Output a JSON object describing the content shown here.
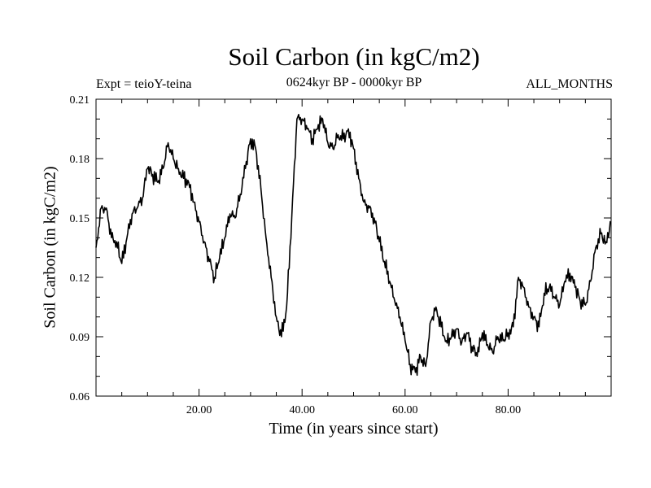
{
  "chart_data": {
    "type": "line",
    "title": "Soil Carbon (in kgC/m2)",
    "experiment": "Expt = teioY-teina",
    "period": "0624kyr BP - 0000kyr BP",
    "season": "ALL_MONTHS",
    "xlabel": "Time (in years since start)",
    "ylabel": "Soil Carbon (in kgC/m2)",
    "xlim": [
      0,
      100
    ],
    "ylim": [
      0.06,
      0.21
    ],
    "x_ticks": [
      20,
      40,
      60,
      80
    ],
    "x_tick_labels": [
      "20.00",
      "40.00",
      "60.00",
      "80.00"
    ],
    "y_ticks": [
      0.06,
      0.09,
      0.12,
      0.15,
      0.18,
      0.21
    ],
    "y_tick_labels": [
      "0.06",
      "0.09",
      "0.12",
      "0.15",
      "0.18",
      "0.21"
    ],
    "series": [
      {
        "name": "Soil Carbon",
        "x": [
          0,
          1,
          2,
          3,
          4,
          5,
          6,
          7,
          8,
          9,
          10,
          11,
          12,
          13,
          14,
          15,
          16,
          17,
          18,
          19,
          20,
          21,
          22,
          23,
          24,
          25,
          26,
          27,
          28,
          29,
          30,
          31,
          32,
          33,
          34,
          35,
          36,
          37,
          38,
          39,
          40,
          41,
          42,
          43,
          44,
          45,
          46,
          47,
          48,
          49,
          50,
          51,
          52,
          53,
          54,
          55,
          56,
          57,
          58,
          59,
          60,
          61,
          62,
          63,
          64,
          65,
          66,
          67,
          68,
          69,
          70,
          71,
          72,
          73,
          74,
          75,
          76,
          77,
          78,
          79,
          80,
          81,
          82,
          83,
          84,
          85,
          86,
          87,
          88,
          89,
          90,
          91,
          92,
          93,
          94,
          95,
          96,
          97,
          98,
          99,
          100
        ],
        "values": [
          0.135,
          0.155,
          0.155,
          0.14,
          0.138,
          0.127,
          0.14,
          0.152,
          0.155,
          0.16,
          0.175,
          0.172,
          0.168,
          0.175,
          0.188,
          0.18,
          0.175,
          0.17,
          0.168,
          0.158,
          0.148,
          0.138,
          0.128,
          0.12,
          0.13,
          0.14,
          0.152,
          0.15,
          0.162,
          0.175,
          0.19,
          0.185,
          0.165,
          0.14,
          0.12,
          0.1,
          0.09,
          0.105,
          0.15,
          0.2,
          0.2,
          0.195,
          0.19,
          0.195,
          0.2,
          0.188,
          0.185,
          0.192,
          0.19,
          0.195,
          0.185,
          0.17,
          0.158,
          0.155,
          0.15,
          0.138,
          0.128,
          0.118,
          0.108,
          0.1,
          0.088,
          0.076,
          0.072,
          0.08,
          0.075,
          0.098,
          0.105,
          0.095,
          0.088,
          0.09,
          0.094,
          0.087,
          0.092,
          0.085,
          0.08,
          0.092,
          0.086,
          0.082,
          0.09,
          0.088,
          0.092,
          0.095,
          0.12,
          0.115,
          0.105,
          0.1,
          0.095,
          0.112,
          0.115,
          0.11,
          0.106,
          0.118,
          0.122,
          0.115,
          0.108,
          0.106,
          0.118,
          0.135,
          0.142,
          0.138,
          0.148
        ]
      }
    ]
  }
}
